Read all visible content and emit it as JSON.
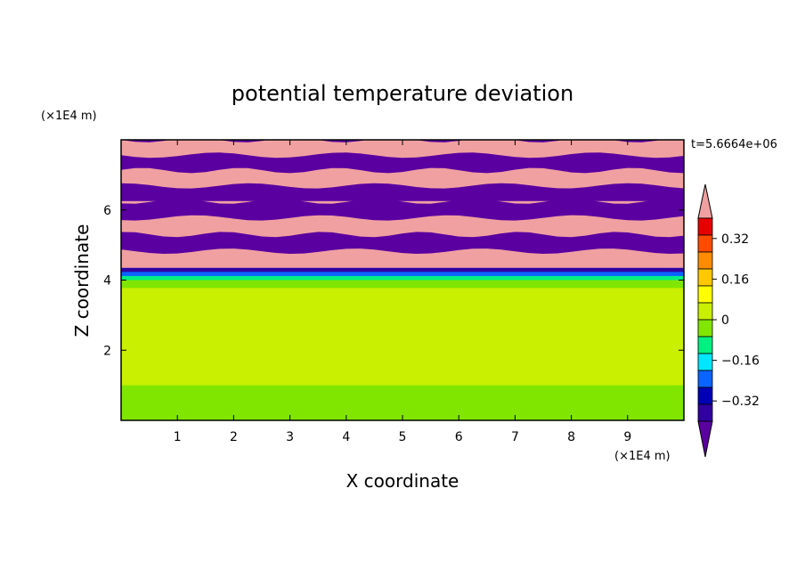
{
  "chart_data": {
    "type": "heatmap",
    "title": "potential temperature deviation",
    "xlabel": "X coordinate",
    "ylabel": "Z coordinate",
    "x_unit": "(×1E4 m)",
    "z_unit": "(×1E4 m)",
    "time_label": "t=5.6664e+06",
    "xlim": [
      0,
      10
    ],
    "zlim": [
      0,
      8
    ],
    "x_ticks": [
      1,
      2,
      3,
      4,
      5,
      6,
      7,
      8,
      9
    ],
    "z_ticks": [
      2,
      4,
      6
    ],
    "colorbar": {
      "tick_labels": [
        "0.32",
        "0.16",
        "0",
        "−0.16",
        "−0.32"
      ],
      "tick_values": [
        0.32,
        0.16,
        0,
        -0.16,
        -0.32
      ],
      "range": [
        -0.4,
        0.4
      ],
      "colors": [
        "#5a00a0",
        "#3000a0",
        "#0000b4",
        "#0a64ff",
        "#00e6ff",
        "#00f082",
        "#80e600",
        "#c8f000",
        "#ffff00",
        "#ffc800",
        "#ff8c00",
        "#ff4b00",
        "#e60000",
        "#f0a0a0"
      ]
    },
    "bands": [
      {
        "z_range": [
          6.25,
          8.0
        ],
        "pattern": "alternating",
        "values": [
          -0.45,
          0.45
        ]
      },
      {
        "z_range": [
          4.35,
          6.25
        ],
        "pattern": "alternating",
        "values": [
          0.45,
          -0.45
        ]
      },
      {
        "z_range": [
          4.0,
          4.35
        ],
        "values": [
          -0.35,
          -0.25,
          -0.1
        ]
      },
      {
        "z_range": [
          3.55,
          4.0
        ],
        "values": [
          -0.05,
          0.05
        ]
      },
      {
        "z_range": [
          2.0,
          3.55
        ],
        "values": [
          0.0,
          0.05
        ]
      },
      {
        "z_range": [
          0.0,
          2.0
        ],
        "values": [
          0.05,
          -0.05
        ]
      }
    ]
  }
}
